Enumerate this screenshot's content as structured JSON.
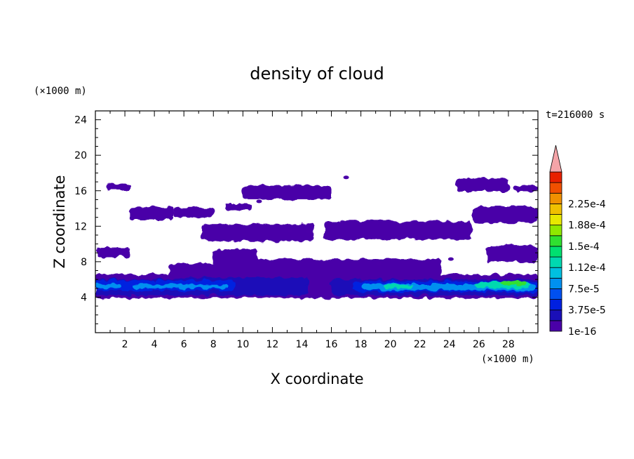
{
  "chart_data": {
    "type": "heatmap",
    "title": "density of cloud",
    "xlabel": "X coordinate",
    "ylabel": "Z coordinate",
    "x_unit": "(×1000 m)",
    "y_unit": "(×1000 m)",
    "time_label": "t=216000 s",
    "xlim": [
      0,
      30
    ],
    "ylim": [
      0,
      25
    ],
    "x_ticks": [
      "2",
      "4",
      "6",
      "8",
      "10",
      "12",
      "14",
      "16",
      "18",
      "20",
      "22",
      "24",
      "26",
      "28"
    ],
    "y_ticks": [
      "4",
      "8",
      "12",
      "16",
      "20",
      "24"
    ],
    "colorbar": {
      "labels": [
        "1e-16",
        "3.75e-5",
        "7.5e-5",
        "1.12e-4",
        "1.5e-4",
        "1.88e-4",
        "2.25e-4"
      ],
      "colors": [
        "#4a00a8",
        "#1a0fb8",
        "#0020e0",
        "#0050f0",
        "#0090f0",
        "#00c0e0",
        "#00d8b0",
        "#00e070",
        "#30e030",
        "#90e800",
        "#e8e800",
        "#f0c000",
        "#f09000",
        "#f05000",
        "#e82000"
      ],
      "extend_color": "#f4a4a8"
    },
    "cloud_layers": [
      {
        "name": "purple",
        "color": "#4a00a8",
        "blobs": [
          [
            0.0,
            30.0,
            3.9,
            6.6
          ],
          [
            0.0,
            2.4,
            8.5,
            9.6
          ],
          [
            0.7,
            2.4,
            16.1,
            16.8
          ],
          [
            2.3,
            5.3,
            12.7,
            14.1
          ],
          [
            5.3,
            8.0,
            13.0,
            14.1
          ],
          [
            8.8,
            10.7,
            13.8,
            14.6
          ],
          [
            10.0,
            16.0,
            15.0,
            16.6
          ],
          [
            8.0,
            11.0,
            6.3,
            9.4
          ],
          [
            5.0,
            8.4,
            6.3,
            7.8
          ],
          [
            10.0,
            12.5,
            7.0,
            8.0
          ],
          [
            7.2,
            14.8,
            10.3,
            12.2
          ],
          [
            8.0,
            23.5,
            6.3,
            8.3
          ],
          [
            15.5,
            25.5,
            10.5,
            12.5
          ],
          [
            25.6,
            30.0,
            12.4,
            14.2
          ],
          [
            26.5,
            30.0,
            8.0,
            9.8
          ],
          [
            24.5,
            28.0,
            15.9,
            17.4
          ],
          [
            28.3,
            30.0,
            15.9,
            16.6
          ],
          [
            16.5,
            25.0,
            11.9,
            12.6
          ]
        ]
      },
      {
        "name": "blue-dark",
        "color": "#1a0fb8",
        "blobs": [
          [
            0.0,
            14.5,
            4.2,
            6.0
          ],
          [
            5.2,
            14.5,
            5.2,
            6.2
          ],
          [
            16.0,
            30.0,
            4.2,
            6.0
          ]
        ]
      },
      {
        "name": "blue-mid",
        "color": "#0020e0",
        "blobs": [
          [
            0.0,
            4.0,
            4.7,
            5.9
          ],
          [
            4.0,
            9.5,
            4.8,
            5.9
          ],
          [
            17.5,
            30.0,
            4.6,
            5.8
          ]
        ]
      },
      {
        "name": "blue-light",
        "color": "#0090f0",
        "blobs": [
          [
            0.0,
            1.8,
            5.0,
            5.6
          ],
          [
            2.5,
            9.0,
            5.0,
            5.4
          ],
          [
            18.0,
            29.8,
            4.8,
            5.5
          ]
        ]
      },
      {
        "name": "cyan",
        "color": "#00d8b0",
        "blobs": [
          [
            25.8,
            29.5,
            5.0,
            5.7
          ],
          [
            19.5,
            21.5,
            5.0,
            5.4
          ]
        ]
      },
      {
        "name": "green",
        "color": "#30e030",
        "blobs": [
          [
            27.5,
            29.3,
            5.3,
            5.8
          ]
        ]
      }
    ],
    "cloud_specks": [
      [
        17.0,
        17.5
      ],
      [
        13.2,
        11.5
      ],
      [
        11.1,
        14.8
      ],
      [
        19.2,
        7.8
      ],
      [
        24.1,
        8.3
      ],
      [
        22.5,
        8.0
      ],
      [
        14.5,
        11.4
      ]
    ]
  }
}
